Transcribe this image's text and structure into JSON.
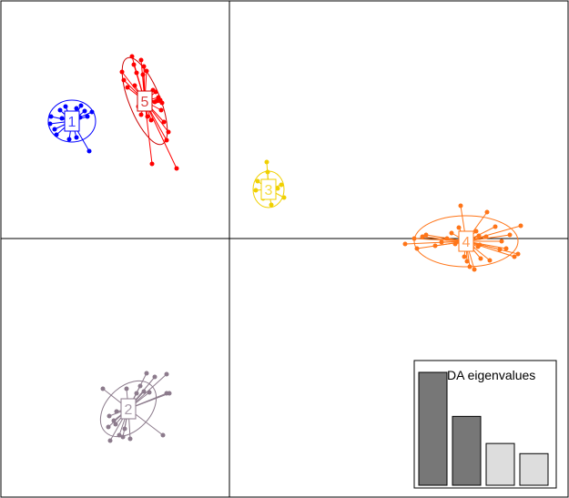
{
  "chart_data": {
    "type": "scatter",
    "description_type": "discriminant-analysis scatterplot",
    "grid": false,
    "legend": "none",
    "axes_cross_at_origin": true,
    "clusters": [
      {
        "label": "1",
        "color": "#0000ff",
        "ellipse_color": "#0000ff",
        "center": [
          79,
          133
        ],
        "ellipse": {
          "rx": 26,
          "ry": 23,
          "angle": 0
        },
        "points": [
          [
            55,
            136
          ],
          [
            56,
            128
          ],
          [
            60,
            142
          ],
          [
            62,
            148
          ],
          [
            66,
            121
          ],
          [
            68,
            130
          ],
          [
            72,
            117
          ],
          [
            76,
            153
          ],
          [
            84,
            151
          ],
          [
            88,
            129
          ],
          [
            89,
            116
          ],
          [
            93,
            122
          ],
          [
            96,
            128
          ],
          [
            98,
            166
          ],
          [
            101,
            123
          ],
          [
            84,
            119
          ]
        ]
      },
      {
        "label": "2",
        "color": "#8c7b8c",
        "ellipse_color": "#8c7b8c",
        "center": [
          141,
          449
        ],
        "ellipse": {
          "rx": 36,
          "ry": 24,
          "angle": -45
        },
        "points": [
          [
            113,
            427
          ],
          [
            119,
            469
          ],
          [
            120,
            457
          ],
          [
            121,
            484
          ],
          [
            125,
            462
          ],
          [
            127,
            466
          ],
          [
            128,
            452
          ],
          [
            131,
            478
          ],
          [
            135,
            480
          ],
          [
            137,
            471
          ],
          [
            143,
            482
          ],
          [
            139,
            427
          ],
          [
            150,
            432
          ],
          [
            154,
            424
          ],
          [
            158,
            430
          ],
          [
            161,
            410
          ],
          [
            164,
            431
          ],
          [
            170,
            414
          ],
          [
            179,
            478
          ],
          [
            183,
            432
          ],
          [
            183,
            411
          ],
          [
            186,
            432
          ]
        ]
      },
      {
        "label": "3",
        "color": "#f0d000",
        "ellipse_color": "#f0d000",
        "center": [
          295,
          208
        ],
        "ellipse": {
          "rx": 17,
          "ry": 20,
          "angle": 0
        },
        "points": [
          [
            281,
            209
          ],
          [
            283,
            199
          ],
          [
            289,
            218
          ],
          [
            293,
            178
          ],
          [
            294,
            189
          ],
          [
            305,
            207
          ],
          [
            309,
            203
          ],
          [
            312,
            217
          ],
          [
            298,
            225
          ]
        ]
      },
      {
        "label": "4",
        "color": "#ff7518",
        "ellipse_color": "#ff7518",
        "center": [
          512,
          265
        ],
        "ellipse": {
          "rx": 57,
          "ry": 28,
          "angle": 0
        },
        "points": [
          [
            445,
            268
          ],
          [
            455,
            262
          ],
          [
            458,
            273
          ],
          [
            464,
            260
          ],
          [
            468,
            258
          ],
          [
            478,
            270
          ],
          [
            485,
            266
          ],
          [
            491,
            262
          ],
          [
            496,
            256
          ],
          [
            500,
            268
          ],
          [
            504,
            250
          ],
          [
            506,
            226
          ],
          [
            510,
            282
          ],
          [
            513,
            287
          ],
          [
            516,
            293
          ],
          [
            519,
            272
          ],
          [
            521,
            296
          ],
          [
            523,
            254
          ],
          [
            525,
            271
          ],
          [
            526,
            259
          ],
          [
            527,
            269
          ],
          [
            528,
            284
          ],
          [
            534,
            260
          ],
          [
            535,
            233
          ],
          [
            538,
            286
          ],
          [
            544,
            249
          ],
          [
            549,
            274
          ],
          [
            551,
            265
          ],
          [
            556,
            273
          ],
          [
            560,
            258
          ],
          [
            565,
            282
          ],
          [
            569,
            279
          ],
          [
            572,
            248
          ],
          [
            517,
            261
          ],
          [
            515,
            271
          ],
          [
            509,
            270
          ]
        ]
      },
      {
        "label": "5",
        "color": "#ff0000",
        "ellipse_color": "#cc0000",
        "center": [
          159,
          111
        ],
        "ellipse": {
          "rx": 51,
          "ry": 17,
          "angle": 68
        },
        "points": [
          [
            134,
            79
          ],
          [
            136,
            88
          ],
          [
            140,
            96
          ],
          [
            145,
            62
          ],
          [
            147,
            71
          ],
          [
            148,
            94
          ],
          [
            150,
            80
          ],
          [
            152,
            117
          ],
          [
            155,
            66
          ],
          [
            155,
            126
          ],
          [
            157,
            82
          ],
          [
            158,
            73
          ],
          [
            161,
            78
          ],
          [
            162,
            128
          ],
          [
            163,
            120
          ],
          [
            166,
            132
          ],
          [
            167,
            180
          ],
          [
            170,
            112
          ],
          [
            172,
            111
          ],
          [
            174,
            107
          ],
          [
            176,
            110
          ],
          [
            177,
            121
          ],
          [
            178,
            113
          ],
          [
            180,
            134
          ],
          [
            183,
            154
          ],
          [
            185,
            145
          ],
          [
            194,
            185
          ],
          [
            168,
            99
          ],
          [
            171,
            101
          ]
        ]
      }
    ],
    "eigenvalues": {
      "title": "DA eigenvalues",
      "values": [
        100,
        61,
        37,
        28
      ],
      "retained": 2,
      "color_retained": "#777777",
      "color_other": "#dddddd"
    }
  }
}
